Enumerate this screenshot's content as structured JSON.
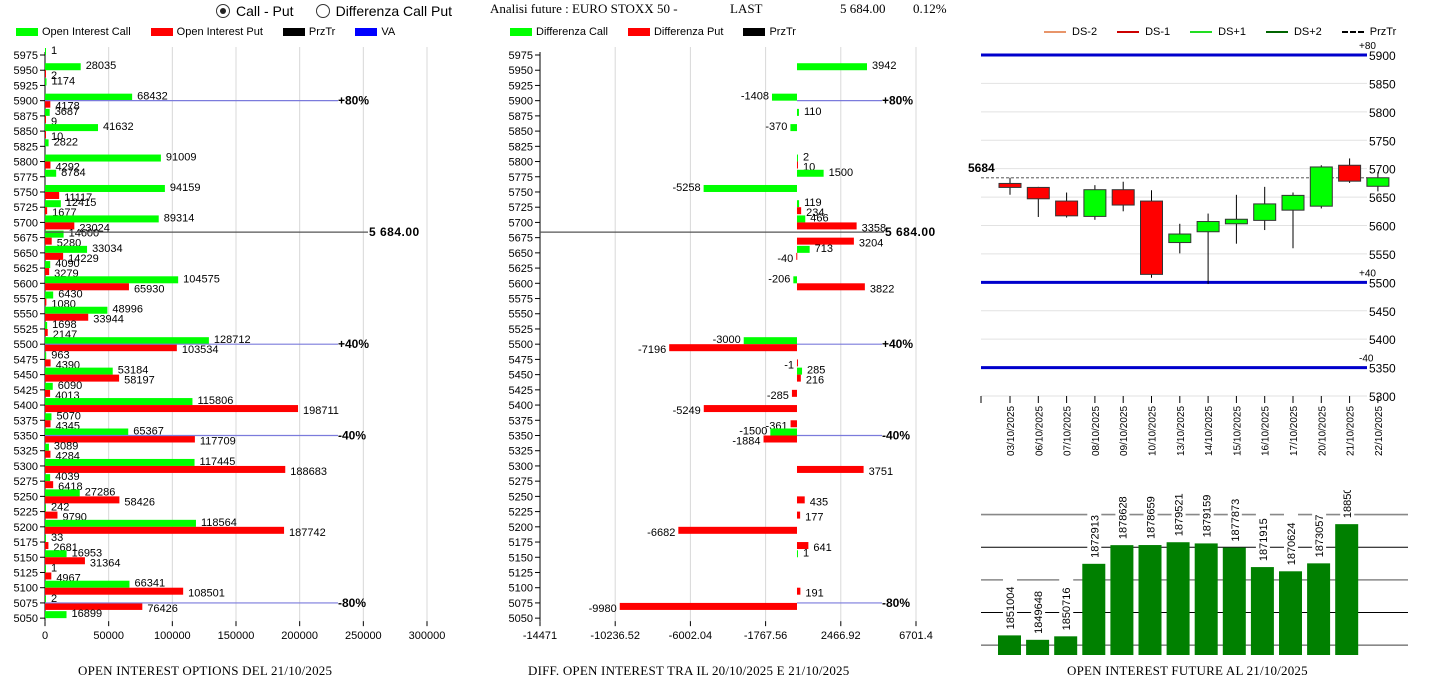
{
  "controls": {
    "radio_call_put": {
      "label": "Call - Put",
      "selected": true
    },
    "radio_diff": {
      "label": "Differenza Call Put",
      "selected": false
    }
  },
  "header": {
    "title": "Analisi future : EURO STOXX 50 -",
    "last_label": "LAST",
    "last_value": "5 684.00",
    "change": "0.12%"
  },
  "colors": {
    "call": "#00ff00",
    "put": "#ff0000",
    "przTr": "#000000",
    "va": "#0000ff",
    "va_line": "#7b7bdc",
    "future_bar": "#008000",
    "ds_minus2": "#e8956a",
    "ds_minus1": "#cc0000",
    "ds_plus1": "#22dd22",
    "ds_plus2": "#006400"
  },
  "chart_data": [
    {
      "id": "oi_options",
      "type": "bar",
      "orientation": "horizontal",
      "title": "OPEN INTEREST OPTIONS DEL 21/10/2025",
      "legend": [
        "Open Interest Call",
        "Open Interest Put",
        "PrzTr",
        "VA"
      ],
      "legend_position": "top",
      "xlim": [
        0,
        300000
      ],
      "x_ticks": [
        "0",
        "50000",
        "100000",
        "150000",
        "200000",
        "250000",
        "300000"
      ],
      "categories": [
        5975,
        5950,
        5925,
        5900,
        5875,
        5850,
        5825,
        5800,
        5775,
        5750,
        5725,
        5700,
        5675,
        5650,
        5625,
        5600,
        5575,
        5550,
        5525,
        5500,
        5475,
        5450,
        5425,
        5400,
        5375,
        5350,
        5325,
        5300,
        5275,
        5250,
        5225,
        5200,
        5175,
        5150,
        5125,
        5100,
        5075,
        5050
      ],
      "series": [
        {
          "name": "Open Interest Call",
          "values": [
            1,
            28035,
            1174,
            68432,
            3687,
            41632,
            2822,
            91009,
            8784,
            94159,
            12415,
            89314,
            14600,
            33034,
            4090,
            104575,
            6430,
            48996,
            1698,
            128712,
            963,
            53184,
            6090,
            115806,
            5070,
            65367,
            3089,
            117445,
            4039,
            27286,
            242,
            118564,
            33,
            16953,
            1,
            66341,
            2,
            16899
          ]
        },
        {
          "name": "Open Interest Put",
          "values": [
            null,
            2,
            null,
            4178,
            9,
            10,
            null,
            4292,
            null,
            11117,
            1677,
            23024,
            5280,
            14229,
            3279,
            65930,
            1080,
            33944,
            2147,
            103534,
            4390,
            58197,
            4013,
            198711,
            4345,
            117709,
            4284,
            188683,
            6418,
            58426,
            9790,
            187742,
            2681,
            31364,
            4967,
            108501,
            76426,
            null
          ]
        }
      ],
      "reference_lines": [
        {
          "strike": 5900,
          "label": "+80%",
          "type": "va"
        },
        {
          "strike": 5684,
          "label": "5 684.00",
          "type": "przTr"
        },
        {
          "strike": 5500,
          "label": "+40%",
          "type": "va"
        },
        {
          "strike": 5350,
          "label": "-40%",
          "type": "va"
        },
        {
          "strike": 5075,
          "label": "-80%",
          "type": "va"
        }
      ]
    },
    {
      "id": "oi_diff",
      "type": "bar",
      "orientation": "horizontal",
      "title": "DIFF. OPEN INTEREST TRA IL 20/10/2025 E 21/10/2025",
      "legend": [
        "Differenza Call",
        "Differenza Put",
        "PrzTr"
      ],
      "legend_position": "top",
      "xlim": [
        -14471,
        6701.4
      ],
      "x_ticks": [
        "-14471",
        "-10236.52",
        "-6002.04",
        "-1767.56",
        "2466.92",
        "6701.4"
      ],
      "categories": [
        5975,
        5950,
        5925,
        5900,
        5875,
        5850,
        5825,
        5800,
        5775,
        5750,
        5725,
        5700,
        5675,
        5650,
        5625,
        5600,
        5575,
        5550,
        5525,
        5500,
        5475,
        5450,
        5425,
        5400,
        5375,
        5350,
        5325,
        5300,
        5275,
        5250,
        5225,
        5200,
        5175,
        5150,
        5125,
        5100,
        5075,
        5050
      ],
      "series": [
        {
          "name": "Differenza Call",
          "values": [
            null,
            3942,
            null,
            -1408,
            110,
            -370,
            null,
            2,
            1500,
            -5258,
            119,
            466,
            null,
            713,
            null,
            -206,
            null,
            null,
            null,
            -3000,
            null,
            285,
            null,
            null,
            null,
            -1500,
            null,
            null,
            null,
            null,
            null,
            null,
            null,
            1,
            null,
            null,
            null,
            null
          ]
        },
        {
          "name": "Differenza Put",
          "values": [
            null,
            null,
            null,
            null,
            null,
            null,
            null,
            10,
            null,
            null,
            234,
            3358,
            3204,
            -40,
            null,
            3822,
            null,
            null,
            null,
            -7196,
            -1,
            216,
            -285,
            -5249,
            -361,
            -1884,
            null,
            3751,
            null,
            435,
            177,
            -6682,
            641,
            null,
            null,
            191,
            -9980,
            null
          ]
        }
      ],
      "reference_lines": [
        {
          "strike": 5900,
          "label": "+80%",
          "type": "va"
        },
        {
          "strike": 5684,
          "label": "5 684.00",
          "type": "przTr"
        },
        {
          "strike": 5500,
          "label": "+40%",
          "type": "va"
        },
        {
          "strike": 5350,
          "label": "-40%",
          "type": "va"
        },
        {
          "strike": 5075,
          "label": "-80%",
          "type": "va"
        }
      ]
    },
    {
      "id": "candles",
      "type": "candlestick",
      "legend": [
        "DS-2",
        "DS-1",
        "DS+1",
        "DS+2",
        "PrzTr"
      ],
      "legend_position": "top",
      "ylim": [
        5300,
        5900
      ],
      "y_ticks": [
        5900,
        5850,
        5800,
        5750,
        5700,
        5650,
        5600,
        5550,
        5500,
        5450,
        5400,
        5350,
        5300
      ],
      "price_label": "5684",
      "price_line": 5684,
      "levels": [
        {
          "value": 5900,
          "label": "+80"
        },
        {
          "value": 5500,
          "label": "+40"
        },
        {
          "value": 5350,
          "label": "-40"
        }
      ],
      "x": [
        "03/10/2025",
        "06/10/2025",
        "07/10/2025",
        "08/10/2025",
        "09/10/2025",
        "10/10/2025",
        "13/10/2025",
        "14/10/2025",
        "15/10/2025",
        "16/10/2025",
        "17/10/2025",
        "20/10/2025",
        "21/10/2025",
        "22/10/2025"
      ],
      "candles": [
        {
          "open": 5674,
          "high": 5684,
          "low": 5654,
          "close": 5667
        },
        {
          "open": 5667,
          "high": 5668,
          "low": 5615,
          "close": 5647
        },
        {
          "open": 5643,
          "high": 5658,
          "low": 5614,
          "close": 5617
        },
        {
          "open": 5616,
          "high": 5671,
          "low": 5610,
          "close": 5663
        },
        {
          "open": 5663,
          "high": 5677,
          "low": 5625,
          "close": 5636
        },
        {
          "open": 5643,
          "high": 5662,
          "low": 5508,
          "close": 5514
        },
        {
          "open": 5570,
          "high": 5603,
          "low": 5551,
          "close": 5585
        },
        {
          "open": 5589,
          "high": 5621,
          "low": 5497,
          "close": 5607
        },
        {
          "open": 5603,
          "high": 5654,
          "low": 5568,
          "close": 5611
        },
        {
          "open": 5609,
          "high": 5668,
          "low": 5592,
          "close": 5638
        },
        {
          "open": 5627,
          "high": 5658,
          "low": 5560,
          "close": 5653
        },
        {
          "open": 5634,
          "high": 5706,
          "low": 5630,
          "close": 5703
        },
        {
          "open": 5706,
          "high": 5718,
          "low": 5675,
          "close": 5678
        },
        {
          "open": 5669,
          "high": 5694,
          "low": 5660,
          "close": 5684
        }
      ]
    },
    {
      "id": "oi_future",
      "type": "bar",
      "title": "OPEN INTEREST FUTURE AL 21/10/2025",
      "categories": [
        "03/10/2025",
        "06/10/2025",
        "07/10/2025",
        "08/10/2025",
        "09/10/2025",
        "10/10/2025",
        "13/10/2025",
        "14/10/2025",
        "15/10/2025",
        "16/10/2025",
        "17/10/2025",
        "20/10/2025",
        "21/10/2025"
      ],
      "values": [
        1851004,
        1849648,
        1850716,
        1872913,
        1878628,
        1878659,
        1879521,
        1879159,
        1877873,
        1871915,
        1870624,
        1873057,
        1885055
      ]
    }
  ]
}
